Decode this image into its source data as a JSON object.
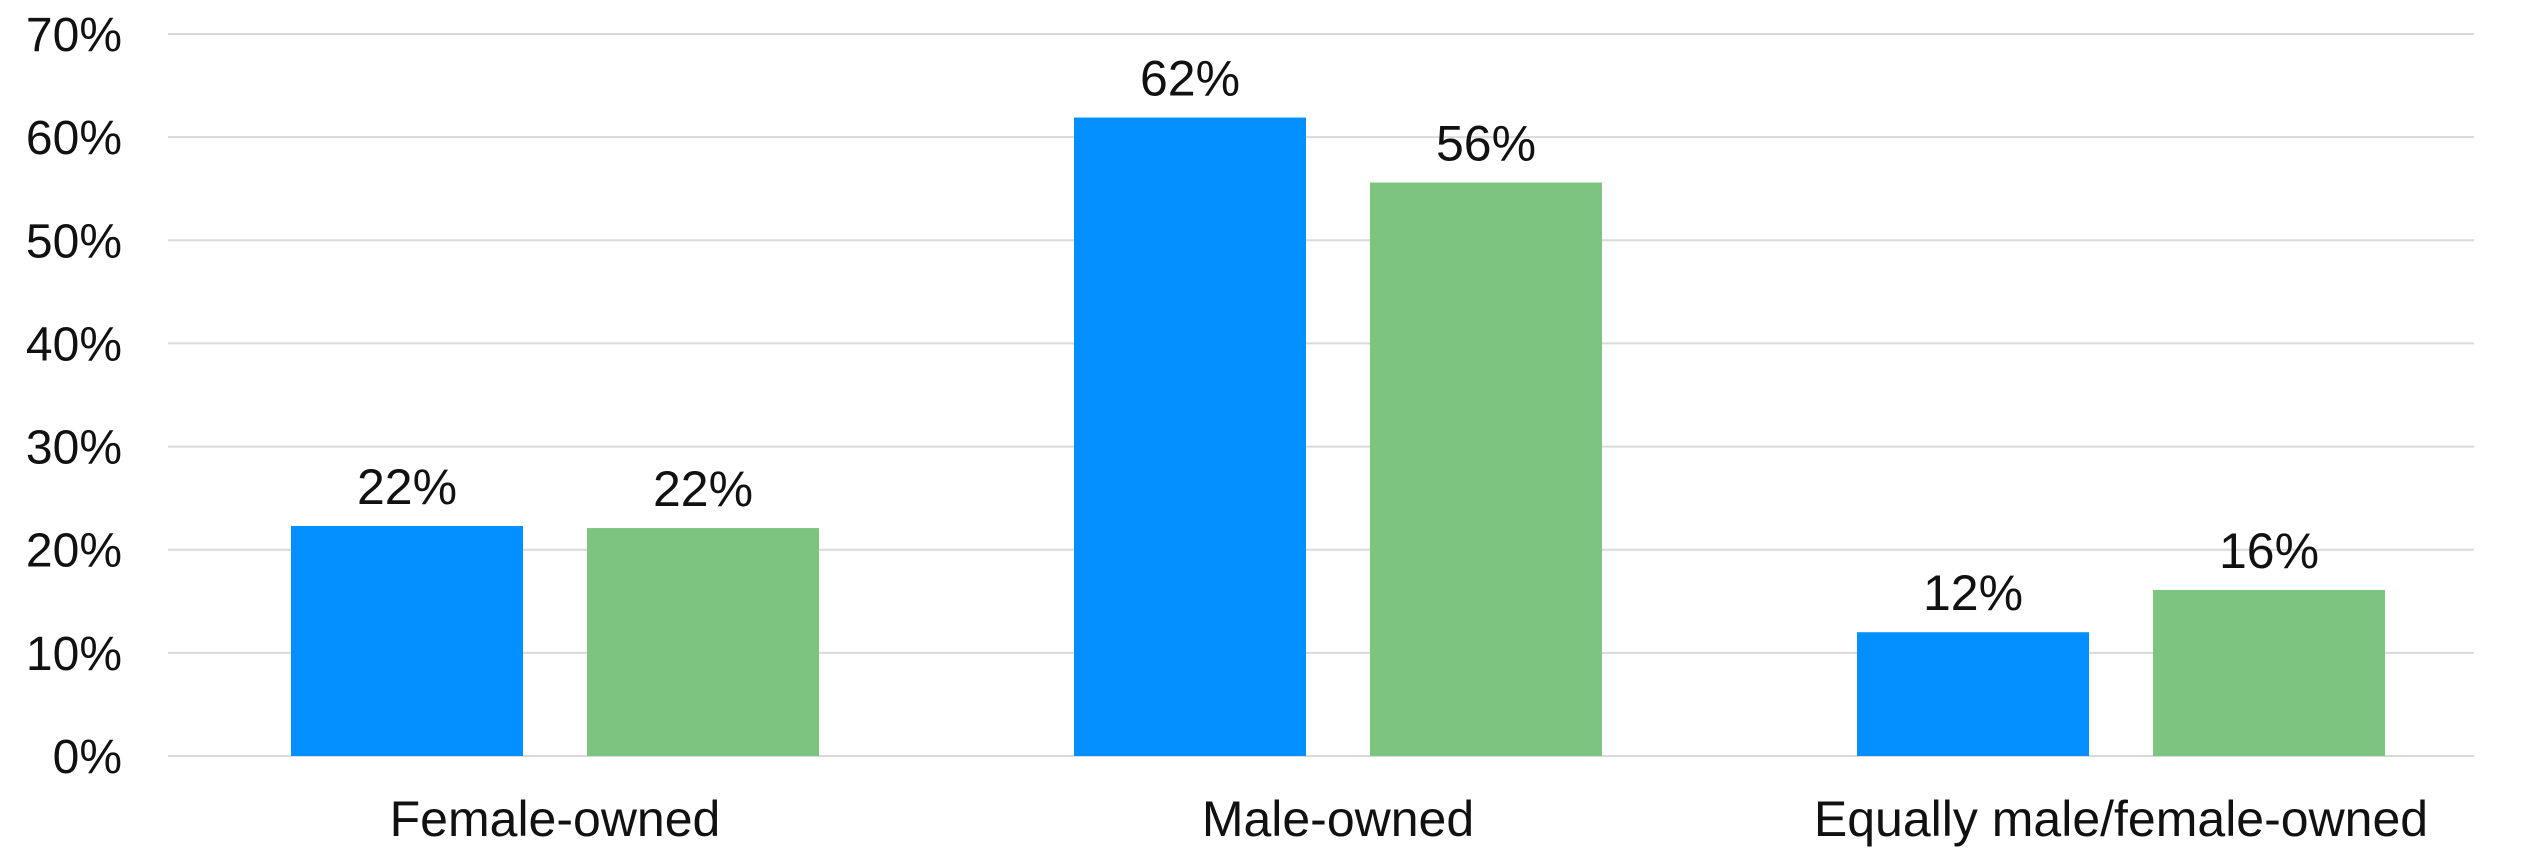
{
  "chart_data": {
    "type": "bar",
    "title": "",
    "xlabel": "",
    "ylabel": "",
    "categories": [
      "Female-owned",
      "Male-owned",
      "Equally male/female-owned"
    ],
    "series": [
      {
        "values": [
          22.3,
          61.9,
          12.0
        ],
        "labels": [
          "22%",
          "62%",
          "12%"
        ],
        "color": "#038FFF"
      },
      {
        "values": [
          22.1,
          55.6,
          16.1
        ],
        "labels": [
          "22%",
          "56%",
          "16%"
        ],
        "color": "#7DC57E"
      }
    ],
    "ylim": [
      0,
      70
    ],
    "yticks": [
      0,
      10,
      20,
      30,
      40,
      50,
      60,
      70
    ],
    "ytick_labels": [
      "0%",
      "10%",
      "20%",
      "30%",
      "40%",
      "50%",
      "60%",
      "70%"
    ],
    "grid": true,
    "gridline_color": "#D9D9D9",
    "legend": "none"
  }
}
